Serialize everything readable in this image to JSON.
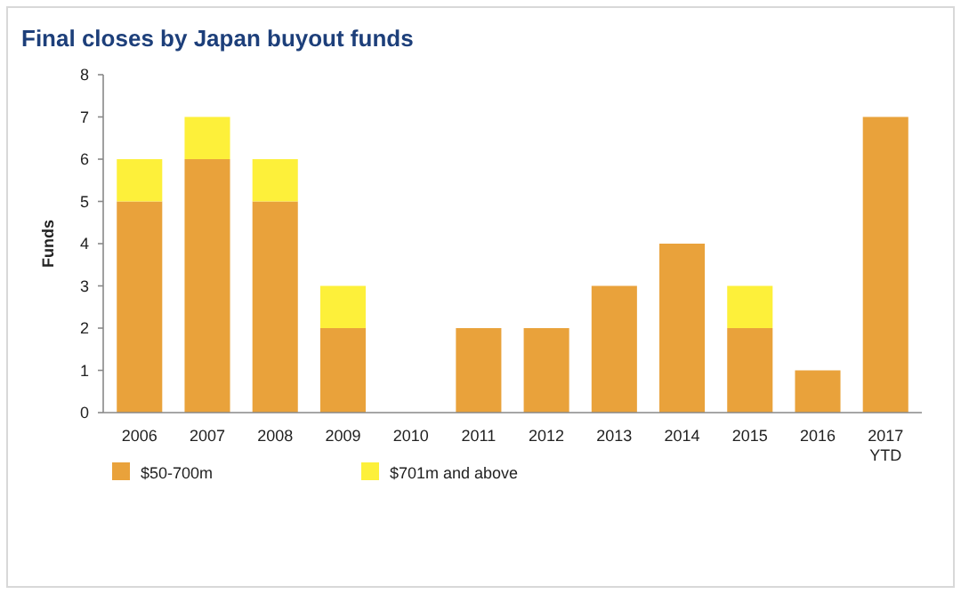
{
  "chart_data": {
    "type": "bar",
    "title": "Final closes by Japan buyout funds",
    "ylabel": "Funds",
    "categories": [
      "2006",
      "2007",
      "2008",
      "2009",
      "2010",
      "2011",
      "2012",
      "2013",
      "2014",
      "2015",
      "2016",
      "2017 YTD"
    ],
    "stacked": true,
    "series": [
      {
        "name": "$50-700m",
        "color": "#e9a23b",
        "values": [
          5,
          6,
          5,
          2,
          0,
          2,
          2,
          3,
          4,
          2,
          1,
          7
        ]
      },
      {
        "name": "$701m and above",
        "color": "#fdf03a",
        "values": [
          1,
          1,
          1,
          1,
          0,
          0,
          0,
          0,
          0,
          1,
          0,
          0
        ]
      }
    ],
    "ylim": [
      0,
      8
    ],
    "yticks": [
      0,
      1,
      2,
      3,
      4,
      5,
      6,
      7,
      8
    ],
    "legend": "bottom left"
  }
}
